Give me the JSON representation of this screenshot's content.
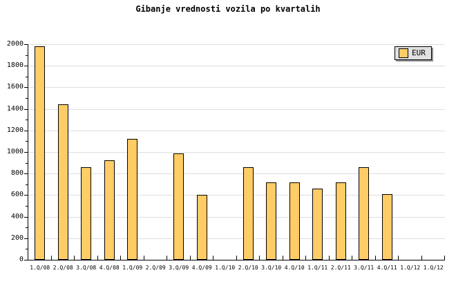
{
  "title": "Gibanje vrednosti vozila po kvartalih",
  "legend": {
    "label": "EUR"
  },
  "colors": {
    "background": "#FFFFFF",
    "bar_fill": "#FFCC66",
    "bar_border": "#000000",
    "gridline": "#DEDEDE",
    "axis": "#000000",
    "legend_bg": "#E0E0E0",
    "legend_shadow": "#909090"
  },
  "chart_data": {
    "type": "bar",
    "title": "Gibanje vrednosti vozila po kvartalih",
    "categories": [
      "1.Q/08",
      "2.Q/08",
      "3.Q/08",
      "4.Q/08",
      "1.Q/09",
      "2.Q/09",
      "3.Q/09",
      "4.Q/09",
      "1.Q/10",
      "2.Q/10",
      "3.Q/10",
      "4.Q/10",
      "1.Q/11",
      "2.Q/11",
      "3.Q/11",
      "4.Q/11",
      "1.Q/12",
      "1.Q/12"
    ],
    "series": [
      {
        "name": "EUR",
        "values": [
          1980,
          1440,
          860,
          920,
          1120,
          0,
          990,
          600,
          0,
          860,
          720,
          720,
          660,
          720,
          860,
          610,
          0,
          0
        ]
      }
    ],
    "xlabel": "",
    "ylabel": "",
    "ylim": [
      0,
      2000
    ],
    "y_major_step": 200,
    "y_minor_step": 100,
    "y_tick_labels": [
      "0",
      "200",
      "400",
      "600",
      "800",
      "1000",
      "1200",
      "1400",
      "1600",
      "1800",
      "2000"
    ],
    "grid": "horizontal-major",
    "legend_position": "top-right"
  }
}
